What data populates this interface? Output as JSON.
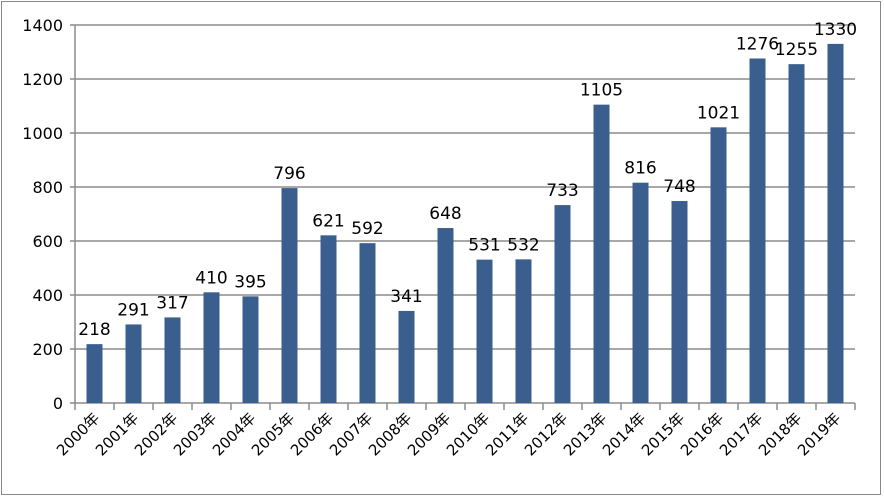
{
  "chart_data": {
    "type": "bar",
    "title": "",
    "xlabel": "",
    "ylabel": "",
    "categories": [
      "2000年",
      "2001年",
      "2002年",
      "2003年",
      "2004年",
      "2005年",
      "2006年",
      "2007年",
      "2008年",
      "2009年",
      "2010年",
      "2011年",
      "2012年",
      "2013年",
      "2014年",
      "2015年",
      "2016年",
      "2017年",
      "2018年",
      "2019年"
    ],
    "values": [
      218,
      291,
      317,
      410,
      395,
      796,
      621,
      592,
      341,
      648,
      531,
      532,
      733,
      1105,
      816,
      748,
      1021,
      1276,
      1255,
      1330
    ],
    "ylim": [
      0,
      1400
    ],
    "yticks": [
      0,
      200,
      400,
      600,
      800,
      1000,
      1200,
      1400
    ],
    "grid": true,
    "legend": "none",
    "data_labels": true,
    "colors": {
      "bar": "#3a5f8f",
      "grid": "#8c8c8c",
      "axis": "#8c8c8c"
    }
  }
}
